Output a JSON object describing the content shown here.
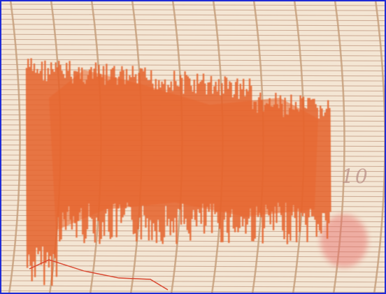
{
  "paper_marking": {
    "text": "10"
  }
}
